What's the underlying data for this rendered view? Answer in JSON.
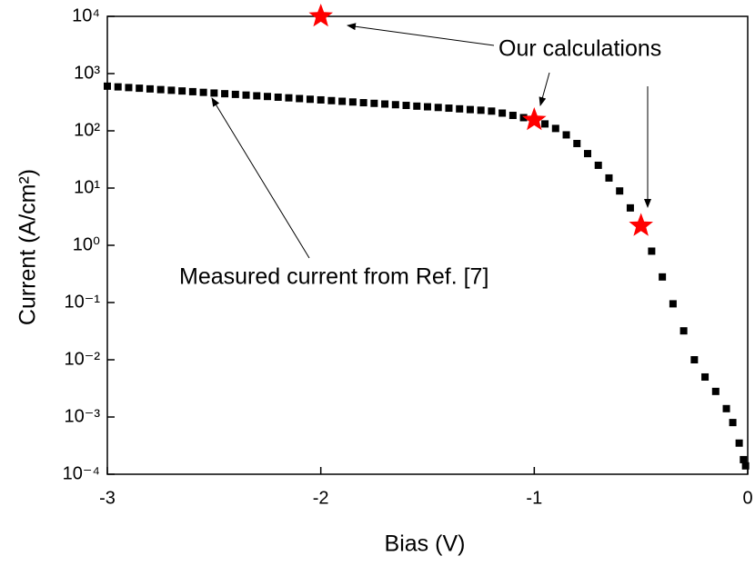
{
  "chart_data": {
    "type": "scatter",
    "xlabel": "Bias (V)",
    "ylabel": "Current (A/cm²)",
    "annotations": [
      "Our calculations",
      "Measured current from Ref. [7]"
    ],
    "log_y": true,
    "xlim": [
      -3,
      0
    ],
    "xticks": [
      -3,
      -2,
      -1,
      0
    ],
    "ylim": [
      0.0001,
      10000
    ],
    "yticks": [
      {
        "value": 10000,
        "label": "10⁴"
      },
      {
        "value": 1000,
        "label": "10³"
      },
      {
        "value": 100,
        "label": "10²"
      },
      {
        "value": 10,
        "label": "10¹"
      },
      {
        "value": 1,
        "label": "10⁰"
      },
      {
        "value": 0.1,
        "label": "10⁻¹"
      },
      {
        "value": 0.01,
        "label": "10⁻²"
      },
      {
        "value": 0.001,
        "label": "10⁻³"
      },
      {
        "value": 0.0001,
        "label": "10⁻⁴"
      }
    ],
    "series": [
      {
        "marker": "square",
        "color": "#000000",
        "x": [
          -3.0,
          -2.95,
          -2.9,
          -2.85,
          -2.8,
          -2.75,
          -2.7,
          -2.65,
          -2.6,
          -2.55,
          -2.5,
          -2.45,
          -2.4,
          -2.35,
          -2.3,
          -2.25,
          -2.2,
          -2.15,
          -2.1,
          -2.05,
          -2.0,
          -1.95,
          -1.9,
          -1.85,
          -1.8,
          -1.75,
          -1.7,
          -1.65,
          -1.6,
          -1.55,
          -1.5,
          -1.45,
          -1.4,
          -1.35,
          -1.3,
          -1.25,
          -1.2,
          -1.15,
          -1.1,
          -1.05,
          -1.0,
          -0.95,
          -0.9,
          -0.85,
          -0.8,
          -0.75,
          -0.7,
          -0.65,
          -0.6,
          -0.55,
          -0.5,
          -0.45,
          -0.4,
          -0.35,
          -0.3,
          -0.25,
          -0.2,
          -0.15,
          -0.1,
          -0.07,
          -0.04,
          -0.02,
          -0.01
        ],
        "values": [
          603,
          586,
          570,
          555,
          540,
          525,
          511,
          497,
          483,
          470,
          457,
          445,
          433,
          421,
          409,
          398,
          387,
          377,
          366,
          356,
          347,
          337,
          328,
          319,
          310,
          302,
          294,
          286,
          278,
          270,
          263,
          256,
          249,
          242,
          235,
          229,
          221,
          204,
          186,
          170,
          151,
          132,
          110,
          85,
          60,
          40,
          25,
          15,
          8.9,
          4.5,
          2.1,
          0.79,
          0.28,
          0.095,
          0.032,
          0.01,
          0.005,
          0.0028,
          0.0014,
          0.0008,
          0.00035,
          0.00018,
          0.00014
        ]
      },
      {
        "marker": "star",
        "color": "#ff0000",
        "x": [
          -2,
          -1,
          -0.5
        ],
        "values": [
          10000,
          155,
          2.2
        ]
      }
    ]
  }
}
